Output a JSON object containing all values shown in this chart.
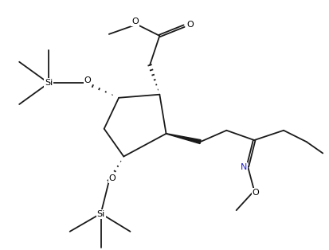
{
  "bg_color": "#ffffff",
  "line_color": "#1a1a1a",
  "N_color": "#2222cc",
  "lw": 1.3,
  "fig_width": 4.13,
  "fig_height": 3.14,
  "dpi": 100,
  "xlim": [
    0,
    10
  ],
  "ylim": [
    0,
    7.63
  ]
}
